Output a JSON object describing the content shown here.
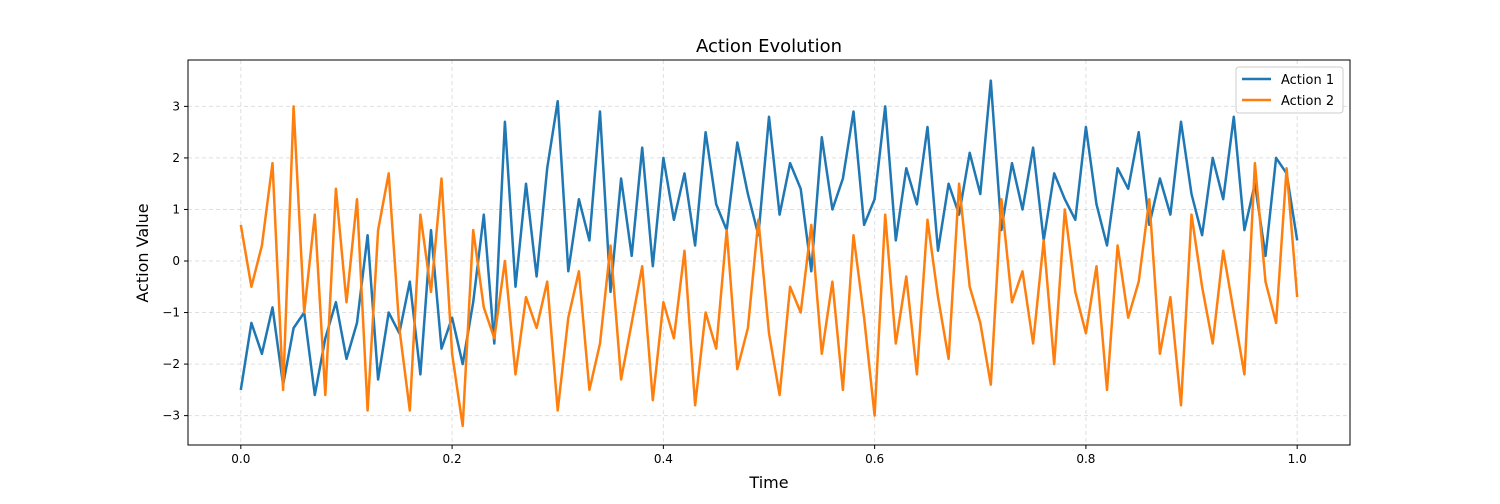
{
  "chart_data": {
    "type": "line",
    "title": "Action Evolution",
    "xlabel": "Time",
    "ylabel": "Action Value",
    "xlim": [
      -0.05,
      1.05
    ],
    "ylim": [
      -3.57,
      3.9
    ],
    "xticks": [
      0.0,
      0.2,
      0.4,
      0.6,
      0.8,
      1.0
    ],
    "xtick_labels": [
      "0.0",
      "0.2",
      "0.4",
      "0.6",
      "0.8",
      "1.0"
    ],
    "yticks": [
      -3,
      -2,
      -1,
      0,
      1,
      2,
      3
    ],
    "ytick_labels": [
      "−3",
      "−2",
      "−1",
      "0",
      "1",
      "2",
      "3"
    ],
    "grid": true,
    "legend_position": "top-right",
    "x_range": [
      0,
      1
    ],
    "series": [
      {
        "name": "Action 1",
        "color": "#1f77b4",
        "values": [
          -2.5,
          -1.2,
          -1.8,
          -0.9,
          -2.4,
          -1.3,
          -1.0,
          -2.6,
          -1.5,
          -0.8,
          -1.9,
          -1.2,
          0.5,
          -2.3,
          -1.0,
          -1.4,
          -0.4,
          -2.2,
          0.6,
          -1.7,
          -1.1,
          -2.0,
          -0.8,
          0.9,
          -1.6,
          2.7,
          -0.5,
          1.5,
          -0.3,
          1.8,
          3.1,
          -0.2,
          1.2,
          0.4,
          2.9,
          -0.6,
          1.6,
          0.1,
          2.2,
          -0.1,
          2.0,
          0.8,
          1.7,
          0.3,
          2.5,
          1.1,
          0.6,
          2.3,
          1.3,
          0.5,
          2.8,
          0.9,
          1.9,
          1.4,
          -0.2,
          2.4,
          1.0,
          1.6,
          2.9,
          0.7,
          1.2,
          3.0,
          0.4,
          1.8,
          1.1,
          2.6,
          0.2,
          1.5,
          0.9,
          2.1,
          1.3,
          3.5,
          0.6,
          1.9,
          1.0,
          2.2,
          0.4,
          1.7,
          1.2,
          0.8,
          2.6,
          1.1,
          0.3,
          1.8,
          1.4,
          2.5,
          0.7,
          1.6,
          0.9,
          2.7,
          1.3,
          0.5,
          2.0,
          1.2,
          2.8,
          0.6,
          1.5,
          0.1,
          2.0,
          1.7,
          0.4
        ]
      },
      {
        "name": "Action 2",
        "color": "#ff7f0e",
        "values": [
          0.7,
          -0.5,
          0.3,
          1.9,
          -2.5,
          3.0,
          -1.0,
          0.9,
          -2.6,
          1.4,
          -0.8,
          1.2,
          -2.9,
          0.6,
          1.7,
          -1.3,
          -2.9,
          0.9,
          -0.6,
          1.6,
          -1.8,
          -3.2,
          0.6,
          -0.9,
          -1.5,
          0.0,
          -2.2,
          -0.7,
          -1.3,
          -0.4,
          -2.9,
          -1.1,
          -0.2,
          -2.5,
          -1.6,
          0.3,
          -2.3,
          -1.2,
          -0.1,
          -2.7,
          -0.8,
          -1.5,
          0.2,
          -2.8,
          -1.0,
          -1.7,
          0.6,
          -2.1,
          -1.3,
          0.8,
          -1.4,
          -2.6,
          -0.5,
          -1.0,
          0.7,
          -1.8,
          -0.4,
          -2.5,
          0.5,
          -1.1,
          -3.0,
          0.9,
          -1.6,
          -0.3,
          -2.2,
          0.8,
          -0.7,
          -1.9,
          1.5,
          -0.5,
          -1.2,
          -2.4,
          1.2,
          -0.8,
          -0.2,
          -1.6,
          0.4,
          -2.0,
          1.0,
          -0.6,
          -1.4,
          -0.1,
          -2.5,
          0.3,
          -1.1,
          -0.4,
          1.2,
          -1.8,
          -0.7,
          -2.8,
          0.9,
          -0.5,
          -1.6,
          0.2,
          -1.0,
          -2.2,
          1.9,
          -0.4,
          -1.2,
          1.8,
          -0.7
        ]
      }
    ]
  }
}
